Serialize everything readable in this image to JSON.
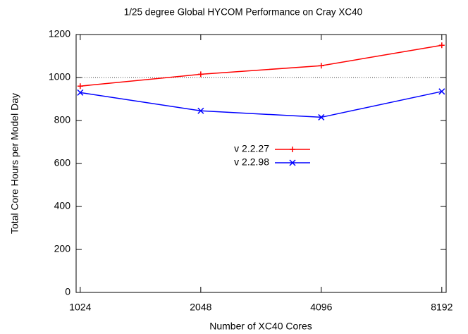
{
  "chart_data": {
    "type": "line",
    "title": "1/25 degree Global HYCOM Performance on Cray XC40",
    "x_label": "Number of XC40 Cores",
    "y_label": "Total Core Hours per Model Day",
    "x": [
      1024,
      2048,
      4096,
      8192
    ],
    "x_log_base": 2,
    "xlim": [
      1000,
      8400
    ],
    "xticks": [
      1024,
      2048,
      4096,
      8192
    ],
    "ylim": [
      0,
      1200
    ],
    "yticks": [
      0,
      200,
      400,
      600,
      800,
      1000,
      1200
    ],
    "reference_line": 1000,
    "grid": false,
    "legend": "center",
    "series": [
      {
        "name": "v 2.2.27",
        "color": "#ff0000",
        "marker": "plus",
        "values": [
          960,
          1015,
          1055,
          1150
        ]
      },
      {
        "name": "v 2.2.98",
        "color": "#0000ff",
        "marker": "cross",
        "values": [
          930,
          845,
          815,
          935
        ]
      }
    ]
  }
}
